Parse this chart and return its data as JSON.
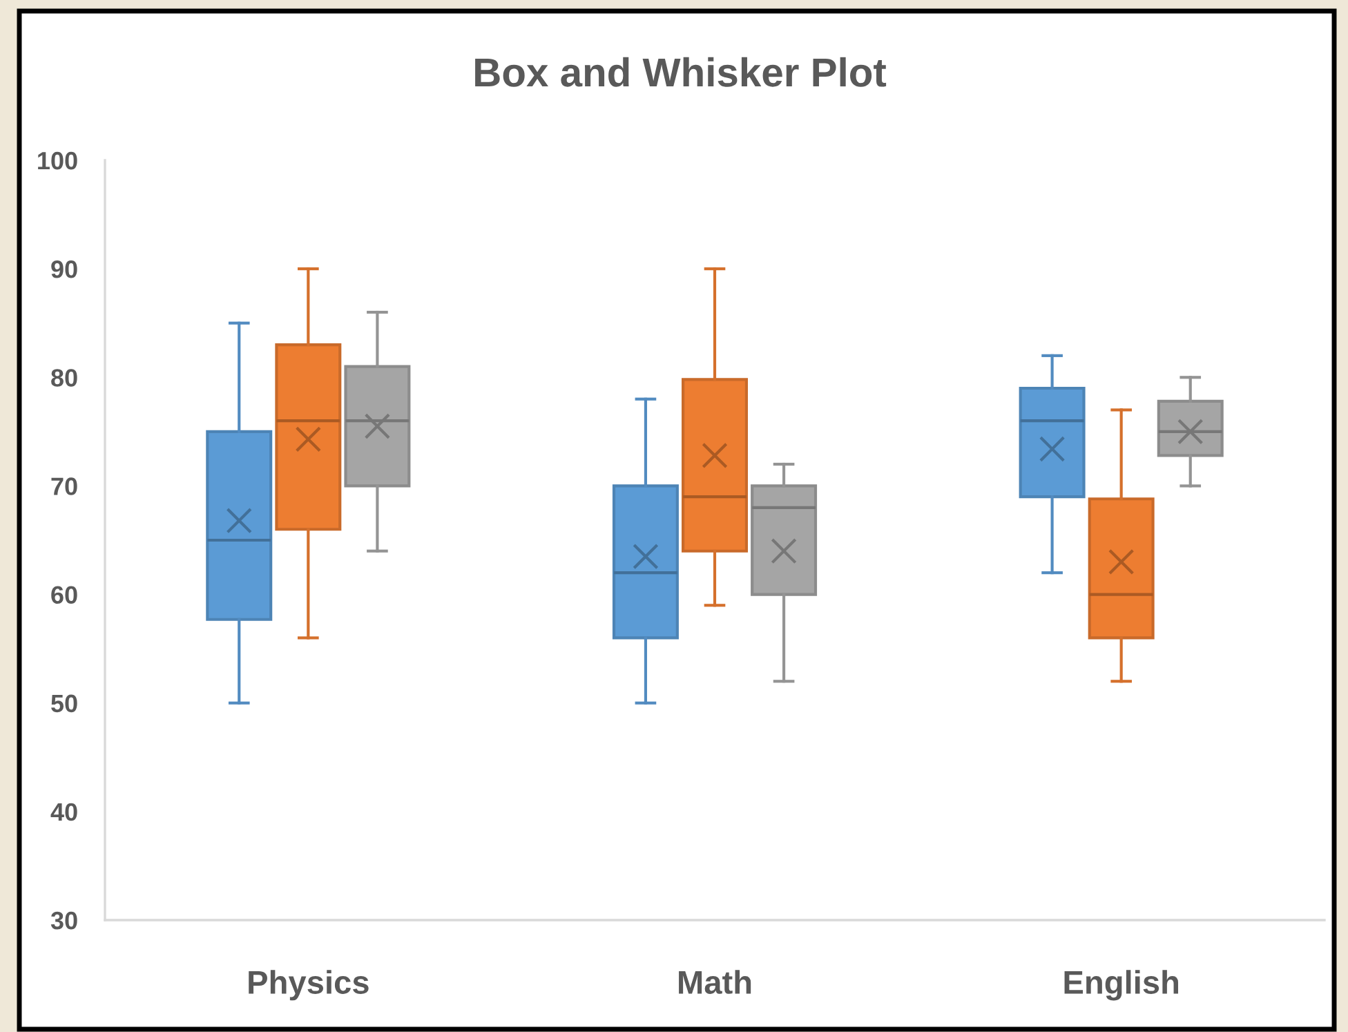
{
  "chart_data": {
    "type": "box",
    "title": "Box and Whisker Plot",
    "categories": [
      "Physics",
      "Math",
      "English"
    ],
    "ylim": [
      30,
      100
    ],
    "yticks": [
      30,
      40,
      50,
      60,
      70,
      80,
      90,
      100
    ],
    "series": [
      {
        "color": "#5b9bd5",
        "boxes": [
          {
            "low": 50,
            "q1": 57.7,
            "median": 65,
            "q3": 75,
            "high": 85,
            "mean": 66.8
          },
          {
            "low": 50,
            "q1": 56,
            "median": 62,
            "q3": 70,
            "high": 78,
            "mean": 63.5
          },
          {
            "low": 62,
            "q1": 69,
            "median": 76,
            "q3": 79,
            "high": 82,
            "mean": 73.4
          }
        ]
      },
      {
        "color": "#ed7d31",
        "boxes": [
          {
            "low": 56,
            "q1": 66,
            "median": 76,
            "q3": 83,
            "high": 90,
            "mean": 74.3
          },
          {
            "low": 59,
            "q1": 64,
            "median": 69,
            "q3": 79.8,
            "high": 90,
            "mean": 72.8
          },
          {
            "low": 52,
            "q1": 56,
            "median": 60,
            "q3": 68.8,
            "high": 77,
            "mean": 63
          }
        ]
      },
      {
        "color": "#a5a5a5",
        "boxes": [
          {
            "low": 64,
            "q1": 70,
            "median": 76,
            "q3": 81,
            "high": 86,
            "mean": 75.5
          },
          {
            "low": 52,
            "q1": 60,
            "median": 68,
            "q3": 70,
            "high": 72,
            "mean": 64
          },
          {
            "low": 70,
            "q1": 72.8,
            "median": 75,
            "q3": 77.8,
            "high": 80,
            "mean": 75
          }
        ]
      }
    ]
  }
}
